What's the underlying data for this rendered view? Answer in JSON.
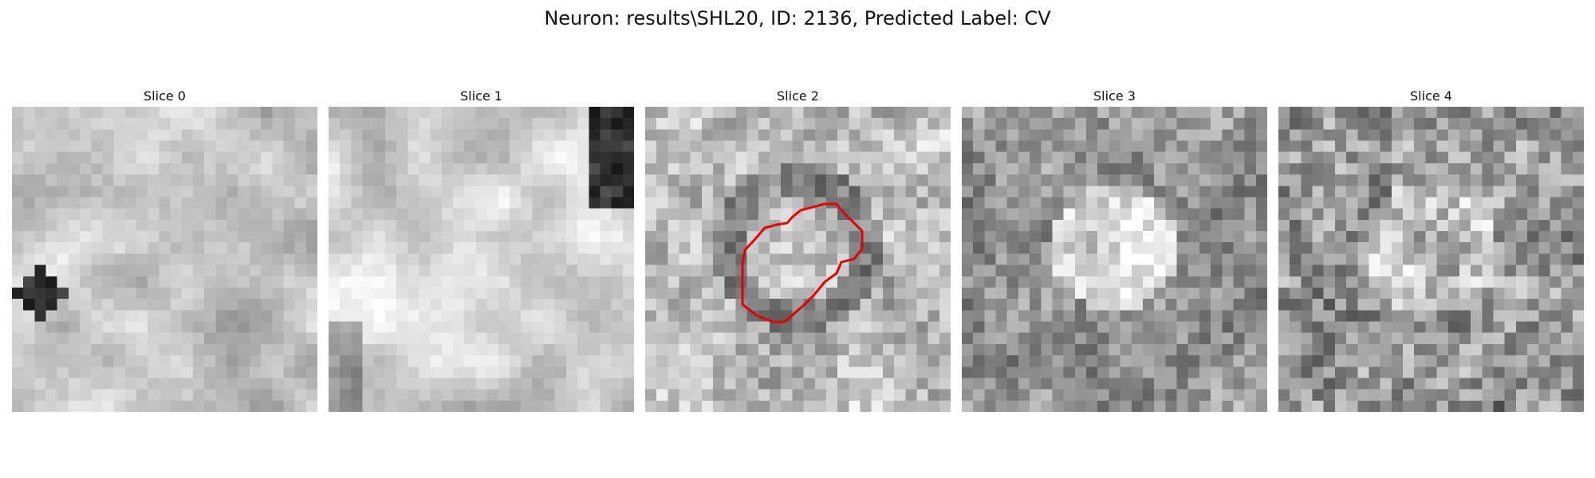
{
  "figure": {
    "title": "Neuron: results\\SHL20, ID: 2136, Predicted Label: CV"
  },
  "slices": [
    {
      "title": "Slice 0",
      "pattern": "diffuse-light",
      "seed": 11
    },
    {
      "title": "Slice 1",
      "pattern": "light-dark-corner",
      "seed": 23
    },
    {
      "title": "Slice 2",
      "pattern": "noisy-mid",
      "seed": 37,
      "contour": true
    },
    {
      "title": "Slice 3",
      "pattern": "dark-blob",
      "seed": 41
    },
    {
      "title": "Slice 4",
      "pattern": "dark-noisy",
      "seed": 53
    }
  ],
  "overlay": {
    "contour_color": "#e30000",
    "contour_slice_index": 2
  },
  "colors": {
    "background": "#ffffff",
    "text": "#111111"
  }
}
